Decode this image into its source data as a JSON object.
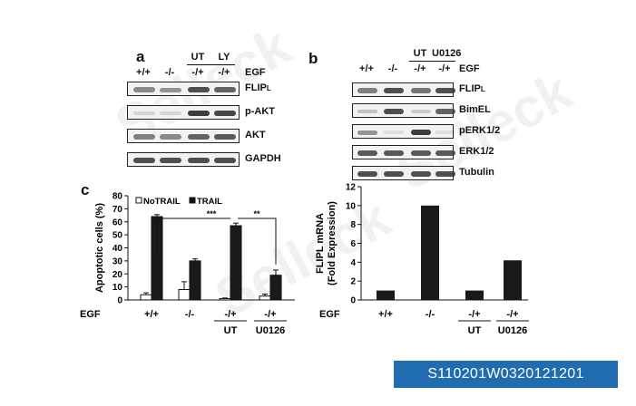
{
  "watermark": "Selleck",
  "badge": "S110201W0320121201",
  "panel_a": {
    "letter": "a",
    "top_labels": [
      "UT",
      "LY"
    ],
    "egf_label": "EGF",
    "lanes": [
      "+/+",
      "-/-",
      "-/+",
      "-/+"
    ],
    "rows": [
      {
        "label_main": "FLIP",
        "label_sub": "L",
        "bands": [
          0.55,
          0.5,
          0.85,
          0.75
        ]
      },
      {
        "label_main": "p-AKT",
        "label_sub": "",
        "bands": [
          0.15,
          0.15,
          0.95,
          0.9
        ]
      },
      {
        "label_main": "AKT",
        "label_sub": "",
        "bands": [
          0.6,
          0.55,
          0.75,
          0.8
        ]
      },
      {
        "label_main": "GAPDH",
        "label_sub": "",
        "bands": [
          0.85,
          0.85,
          0.85,
          0.85
        ]
      }
    ]
  },
  "panel_b": {
    "letter": "b",
    "top_labels": [
      "UT",
      "U0126"
    ],
    "egf_label": "EGF",
    "lanes": [
      "+/+",
      "-/-",
      "-/+",
      "-/+"
    ],
    "rows": [
      {
        "label_main": "FLIP",
        "label_sub": "L",
        "bands": [
          0.6,
          0.85,
          0.65,
          0.85
        ]
      },
      {
        "label_main": "BimEL",
        "label_sub": "",
        "bands": [
          0.25,
          0.85,
          0.2,
          0.75
        ]
      },
      {
        "label_main": "pERK1/2",
        "label_sub": "",
        "bands": [
          0.5,
          0.1,
          0.95,
          0.1
        ]
      },
      {
        "label_main": "ERK1/2",
        "label_sub": "",
        "bands": [
          0.8,
          0.8,
          0.8,
          0.8
        ]
      },
      {
        "label_main": "Tubulin",
        "label_sub": "",
        "bands": [
          0.85,
          0.85,
          0.85,
          0.85
        ]
      }
    ]
  },
  "panel_c": {
    "letter": "c",
    "chart_data": {
      "type": "bar",
      "ylabel": "Apoptotic cells (%)",
      "ylim": [
        0,
        80
      ],
      "yticks": [
        0,
        10,
        20,
        30,
        40,
        50,
        60,
        70,
        80
      ],
      "categories": [
        "+/+",
        "-/-",
        "-/+",
        "-/+"
      ],
      "group_labels": [
        "",
        "",
        "UT",
        "U0126"
      ],
      "xlabel_prefix": "EGF",
      "series": [
        {
          "name": "NoTRAIL",
          "values": [
            4,
            8,
            1,
            3
          ],
          "errors": [
            1.5,
            6,
            0.5,
            1.5
          ],
          "color": "#ffffff"
        },
        {
          "name": "TRAIL",
          "values": [
            64,
            30,
            57,
            19
          ],
          "errors": [
            1.5,
            1.5,
            2,
            4
          ],
          "color": "#1a1a1a"
        }
      ],
      "annotations": [
        "***",
        "**"
      ],
      "legend": "top"
    }
  },
  "panel_d": {
    "chart_data": {
      "type": "bar",
      "ylabel_line1": "FLIPL mRNA",
      "ylabel_line2": "(Fold Expression)",
      "ylim": [
        0,
        12
      ],
      "yticks": [
        0,
        2,
        4,
        6,
        8,
        10,
        12
      ],
      "categories": [
        "+/+",
        "-/-",
        "-/+",
        "-/+"
      ],
      "group_labels": [
        "",
        "",
        "UT",
        "U0126"
      ],
      "xlabel_prefix": "EGF",
      "values": [
        1,
        10,
        1,
        4.2
      ],
      "color": "#1a1a1a"
    }
  }
}
